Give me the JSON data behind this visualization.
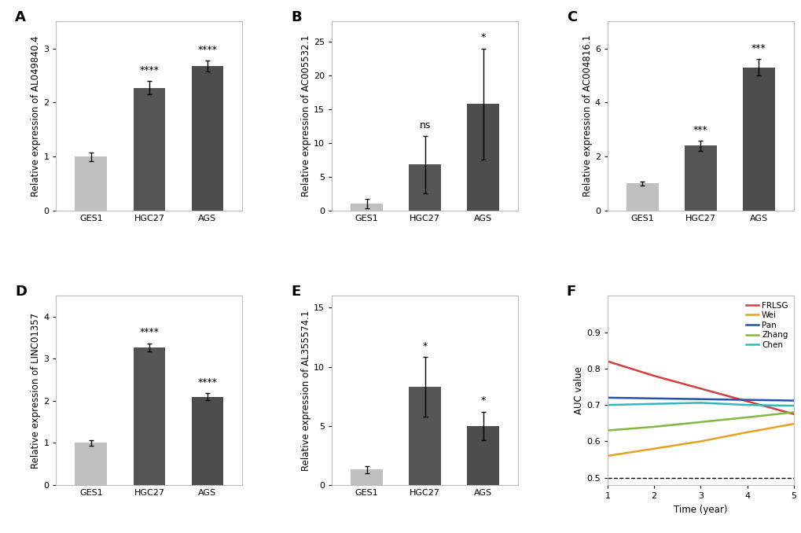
{
  "panels": {
    "A": {
      "ylabel": "Relative expression of AL049840.4",
      "categories": [
        "GES1",
        "HGC27",
        "AGS"
      ],
      "values": [
        1.0,
        2.27,
        2.67
      ],
      "errors": [
        0.08,
        0.12,
        0.1
      ],
      "colors": [
        "#c0c0c0",
        "#555555",
        "#4d4d4d"
      ],
      "sig_labels": [
        "",
        "****",
        "****"
      ],
      "ylim": [
        0,
        3.5
      ],
      "yticks": [
        0,
        1,
        2,
        3
      ]
    },
    "B": {
      "ylabel": "Relative expression of AC005532.1",
      "categories": [
        "GES1",
        "HGC27",
        "AGS"
      ],
      "values": [
        1.0,
        6.8,
        15.8
      ],
      "errors": [
        0.7,
        4.2,
        8.2
      ],
      "colors": [
        "#c0c0c0",
        "#555555",
        "#4d4d4d"
      ],
      "sig_labels": [
        "",
        "ns",
        "*"
      ],
      "ylim": [
        0,
        28
      ],
      "yticks": [
        0,
        5,
        10,
        15,
        20,
        25
      ]
    },
    "C": {
      "ylabel": "Relative expression of AC004816.1",
      "categories": [
        "GES1",
        "HGC27",
        "AGS"
      ],
      "values": [
        1.0,
        2.4,
        5.3
      ],
      "errors": [
        0.08,
        0.18,
        0.3
      ],
      "colors": [
        "#c0c0c0",
        "#555555",
        "#4d4d4d"
      ],
      "sig_labels": [
        "",
        "***",
        "***"
      ],
      "ylim": [
        0,
        7.0
      ],
      "yticks": [
        0,
        2,
        4,
        6
      ]
    },
    "D": {
      "ylabel": "Relative expression of LINC01357",
      "categories": [
        "GES1",
        "HGC27",
        "AGS"
      ],
      "values": [
        1.0,
        3.27,
        2.1
      ],
      "errors": [
        0.07,
        0.1,
        0.09
      ],
      "colors": [
        "#c0c0c0",
        "#555555",
        "#4d4d4d"
      ],
      "sig_labels": [
        "",
        "****",
        "****"
      ],
      "ylim": [
        0,
        4.5
      ],
      "yticks": [
        0,
        1,
        2,
        3,
        4
      ]
    },
    "E": {
      "ylabel": "Relative expression of AL355574.1",
      "categories": [
        "GES1",
        "HGC27",
        "AGS"
      ],
      "values": [
        1.3,
        8.3,
        5.0
      ],
      "errors": [
        0.3,
        2.5,
        1.2
      ],
      "colors": [
        "#c0c0c0",
        "#555555",
        "#4d4d4d"
      ],
      "sig_labels": [
        "",
        "*",
        "*"
      ],
      "ylim": [
        0,
        16
      ],
      "yticks": [
        0,
        5,
        10,
        15
      ]
    }
  },
  "F": {
    "xlabel": "Time (year)",
    "ylabel": "AUC value",
    "xlim": [
      1,
      5
    ],
    "ylim": [
      0.48,
      1.0
    ],
    "yticks": [
      0.5,
      0.6,
      0.7,
      0.8,
      0.9
    ],
    "xticks": [
      1,
      2,
      3,
      4,
      5
    ],
    "dashed_y": 0.5,
    "lines": {
      "FRLSG": {
        "x": [
          1,
          2,
          3,
          4,
          5
        ],
        "y": [
          0.82,
          0.78,
          0.745,
          0.71,
          0.675
        ],
        "color": "#d43f3f",
        "linewidth": 1.8
      },
      "Wei": {
        "x": [
          1,
          2,
          3,
          4,
          5
        ],
        "y": [
          0.56,
          0.58,
          0.6,
          0.625,
          0.648
        ],
        "color": "#e8a020",
        "linewidth": 1.8
      },
      "Pan": {
        "x": [
          1,
          2,
          3,
          4,
          5
        ],
        "y": [
          0.72,
          0.718,
          0.716,
          0.714,
          0.712
        ],
        "color": "#2255aa",
        "linewidth": 1.8
      },
      "Zhang": {
        "x": [
          1,
          2,
          3,
          4,
          5
        ],
        "y": [
          0.63,
          0.64,
          0.653,
          0.666,
          0.68
        ],
        "color": "#80b840",
        "linewidth": 1.8
      },
      "Chen": {
        "x": [
          1,
          2,
          3,
          4,
          5
        ],
        "y": [
          0.7,
          0.703,
          0.706,
          0.7,
          0.698
        ],
        "color": "#30b8c0",
        "linewidth": 1.8
      }
    }
  },
  "background_color": "#ffffff",
  "errorbar_color": "black",
  "errorbar_capsize": 2.5,
  "errorbar_linewidth": 1.0,
  "sig_fontsize": 9,
  "axis_label_fontsize": 8.5,
  "tick_fontsize": 8,
  "panel_label_fontsize": 13
}
